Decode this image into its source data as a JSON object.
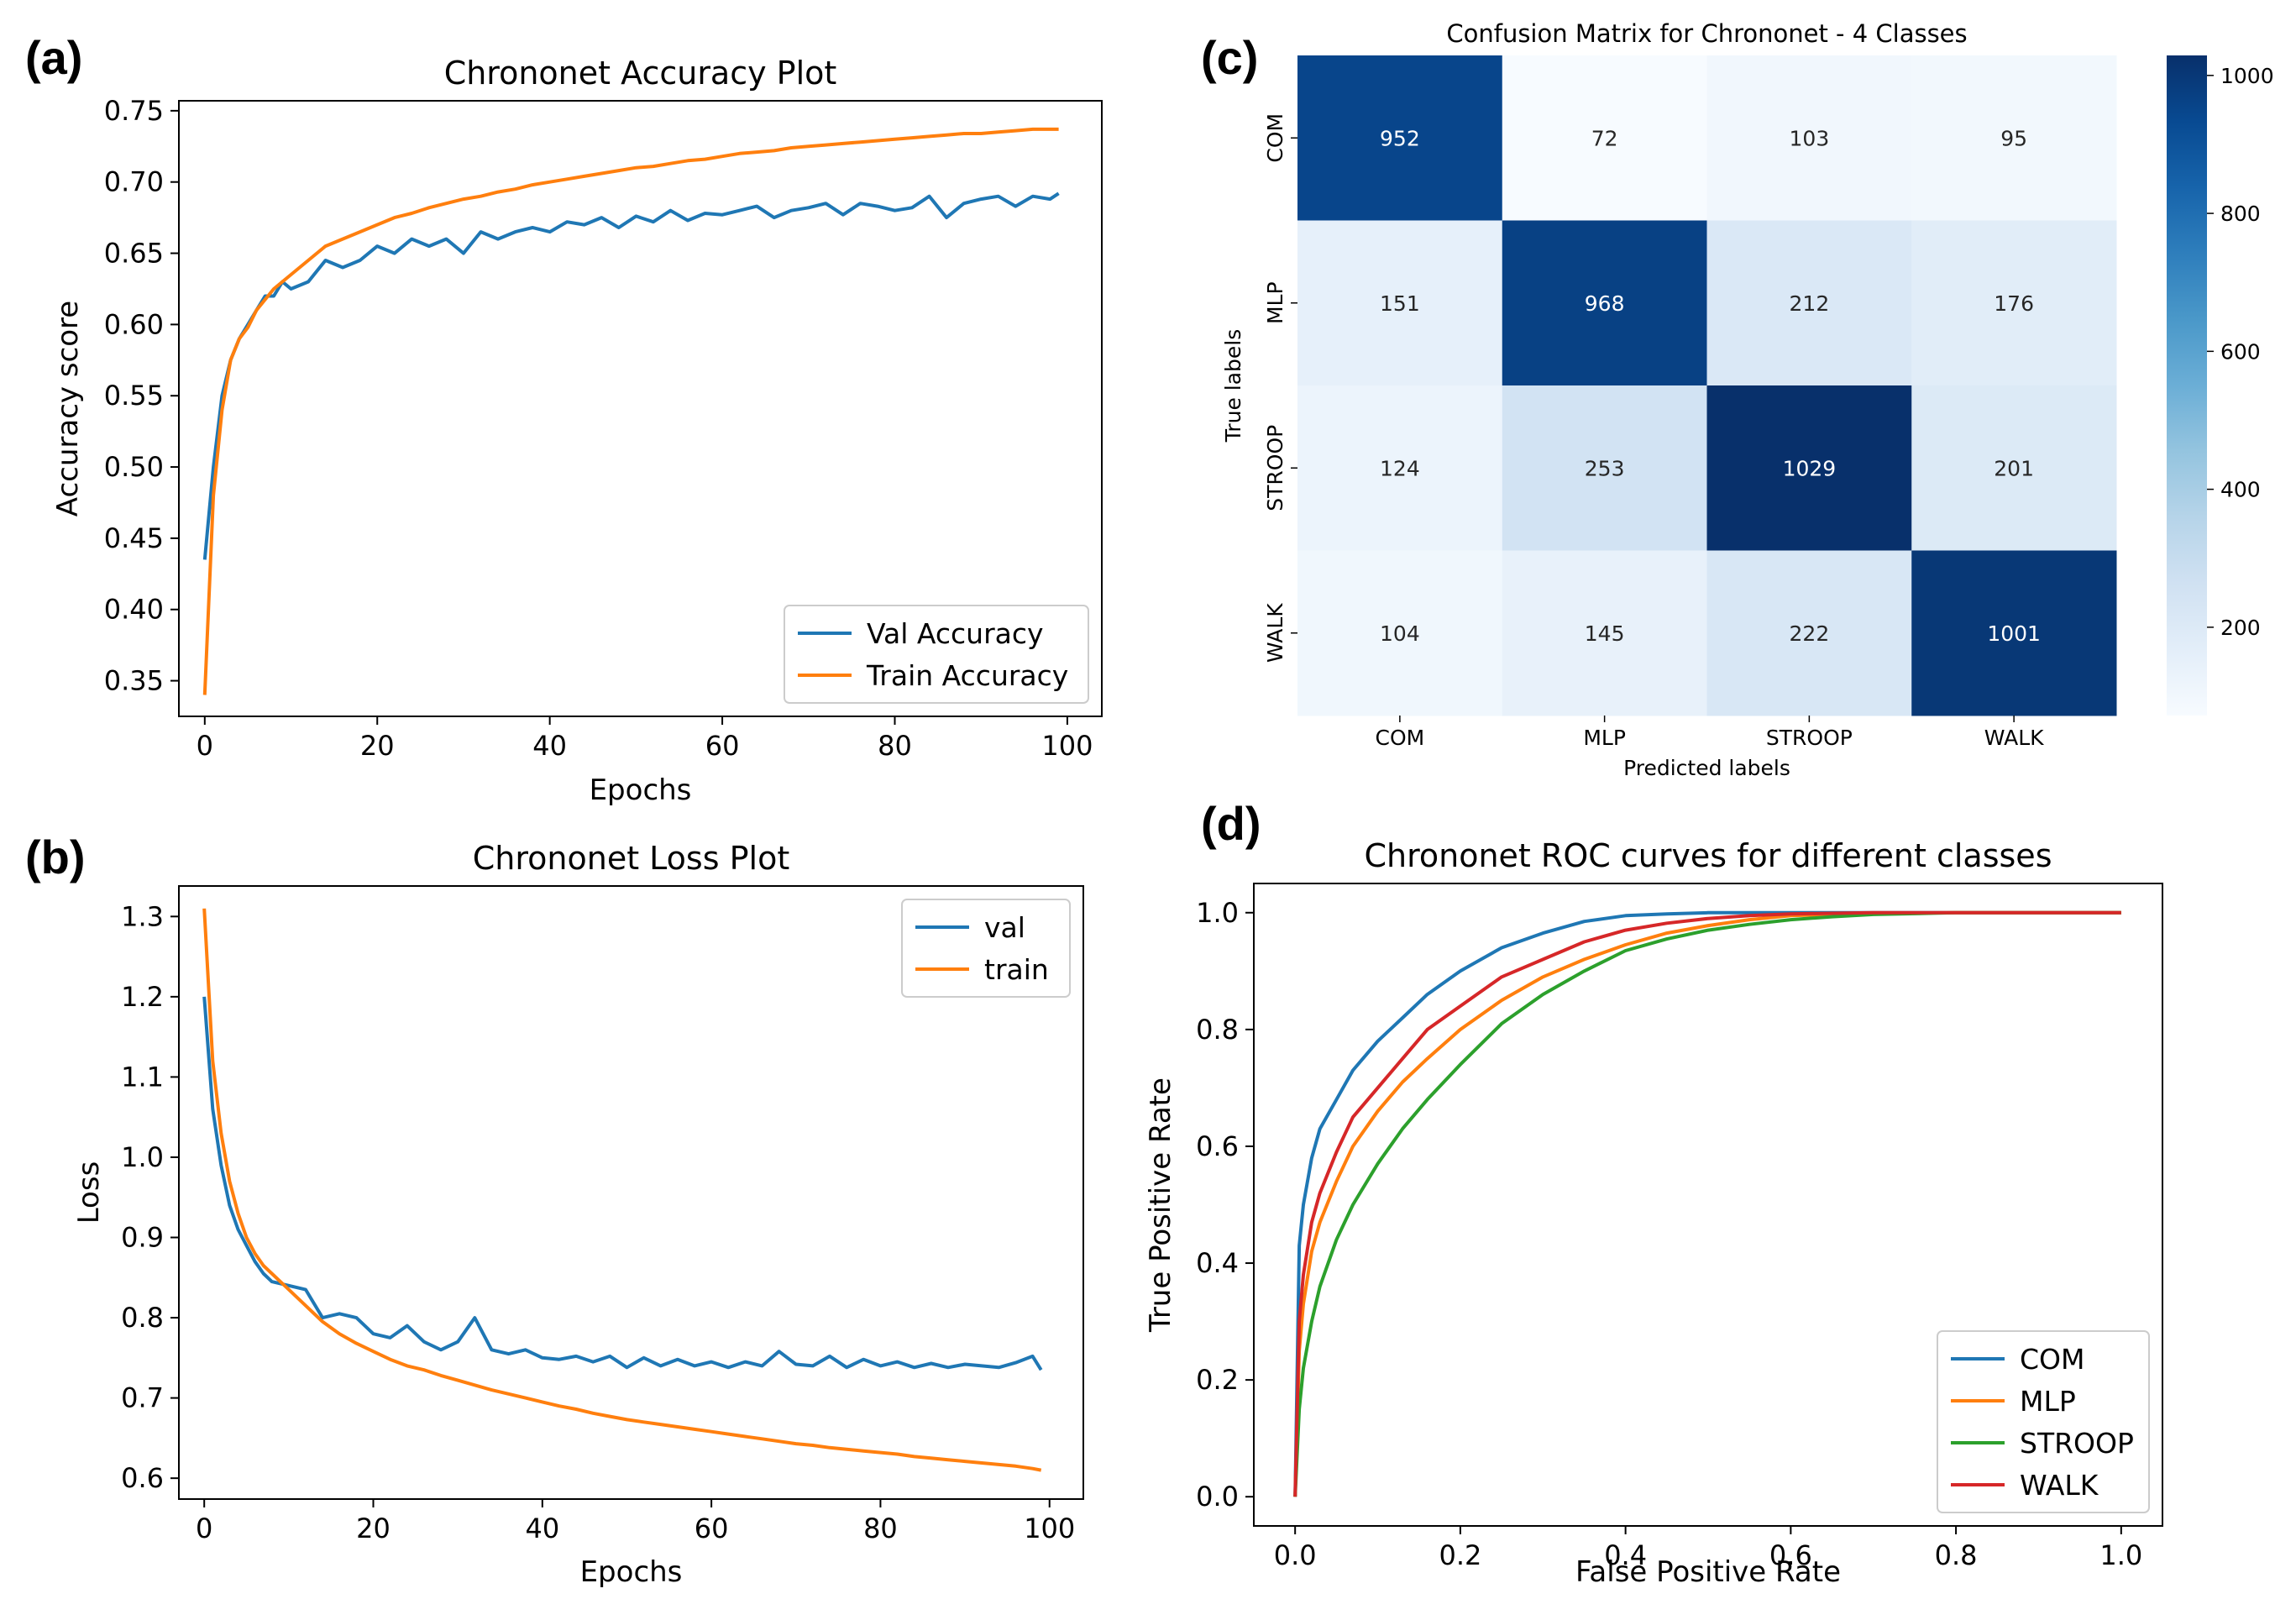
{
  "panels": {
    "a": "(a)",
    "b": "(b)",
    "c": "(c)",
    "d": "(d)"
  },
  "colors": {
    "blue": "#1f77b4",
    "orange": "#ff7f0e",
    "green": "#2ca02c",
    "red": "#d62728"
  },
  "chart_data": [
    {
      "id": "accuracy",
      "type": "line",
      "title": "Chrononet Accuracy Plot",
      "xlabel": "Epochs",
      "ylabel": "Accuracy score",
      "xlim": [
        -3,
        104
      ],
      "ylim": [
        0.325,
        0.757
      ],
      "xticks": [
        0,
        20,
        40,
        60,
        80,
        100
      ],
      "xtick_labels": [
        "0",
        "20",
        "40",
        "60",
        "80",
        "100"
      ],
      "yticks": [
        0.35,
        0.4,
        0.45,
        0.5,
        0.55,
        0.6,
        0.65,
        0.7,
        0.75
      ],
      "ytick_labels": [
        "0.35",
        "0.40",
        "0.45",
        "0.50",
        "0.55",
        "0.60",
        "0.65",
        "0.70",
        "0.75"
      ],
      "legend_position": "lower-right",
      "series": [
        {
          "name": "Val Accuracy",
          "color": "blue",
          "x": [
            0,
            1,
            2,
            3,
            4,
            5,
            6,
            7,
            8,
            9,
            10,
            12,
            14,
            16,
            18,
            20,
            22,
            24,
            26,
            28,
            30,
            32,
            34,
            36,
            38,
            40,
            42,
            44,
            46,
            48,
            50,
            52,
            54,
            56,
            58,
            60,
            62,
            64,
            66,
            68,
            70,
            72,
            74,
            76,
            78,
            80,
            82,
            84,
            86,
            88,
            90,
            92,
            94,
            96,
            98,
            99
          ],
          "y": [
            0.435,
            0.5,
            0.55,
            0.575,
            0.59,
            0.6,
            0.61,
            0.62,
            0.62,
            0.63,
            0.625,
            0.63,
            0.645,
            0.64,
            0.645,
            0.655,
            0.65,
            0.66,
            0.655,
            0.66,
            0.65,
            0.665,
            0.66,
            0.665,
            0.668,
            0.665,
            0.672,
            0.67,
            0.675,
            0.668,
            0.676,
            0.672,
            0.68,
            0.673,
            0.678,
            0.677,
            0.68,
            0.683,
            0.675,
            0.68,
            0.682,
            0.685,
            0.677,
            0.685,
            0.683,
            0.68,
            0.682,
            0.69,
            0.675,
            0.685,
            0.688,
            0.69,
            0.683,
            0.69,
            0.688,
            0.692
          ]
        },
        {
          "name": "Train Accuracy",
          "color": "orange",
          "x": [
            0,
            1,
            2,
            3,
            4,
            5,
            6,
            8,
            10,
            12,
            14,
            16,
            18,
            20,
            22,
            24,
            26,
            28,
            30,
            32,
            34,
            36,
            38,
            40,
            42,
            44,
            46,
            48,
            50,
            52,
            54,
            56,
            58,
            60,
            62,
            64,
            66,
            68,
            70,
            72,
            74,
            76,
            78,
            80,
            82,
            84,
            86,
            88,
            90,
            92,
            94,
            96,
            98,
            99
          ],
          "y": [
            0.34,
            0.48,
            0.54,
            0.575,
            0.59,
            0.598,
            0.61,
            0.625,
            0.635,
            0.645,
            0.655,
            0.66,
            0.665,
            0.67,
            0.675,
            0.678,
            0.682,
            0.685,
            0.688,
            0.69,
            0.693,
            0.695,
            0.698,
            0.7,
            0.702,
            0.704,
            0.706,
            0.708,
            0.71,
            0.711,
            0.713,
            0.715,
            0.716,
            0.718,
            0.72,
            0.721,
            0.722,
            0.724,
            0.725,
            0.726,
            0.727,
            0.728,
            0.729,
            0.73,
            0.731,
            0.732,
            0.733,
            0.734,
            0.734,
            0.735,
            0.736,
            0.737,
            0.737,
            0.737
          ]
        }
      ]
    },
    {
      "id": "loss",
      "type": "line",
      "title": "Chrononet Loss Plot",
      "xlabel": "Epochs",
      "ylabel": "Loss",
      "xlim": [
        -3,
        104
      ],
      "ylim": [
        0.574,
        1.338
      ],
      "xticks": [
        0,
        20,
        40,
        60,
        80,
        100
      ],
      "xtick_labels": [
        "0",
        "20",
        "40",
        "60",
        "80",
        "100"
      ],
      "yticks": [
        0.6,
        0.7,
        0.8,
        0.9,
        1.0,
        1.1,
        1.2,
        1.3
      ],
      "ytick_labels": [
        "0.6",
        "0.7",
        "0.8",
        "0.9",
        "1.0",
        "1.1",
        "1.2",
        "1.3"
      ],
      "legend_position": "upper-right",
      "series": [
        {
          "name": "val",
          "color": "blue",
          "x": [
            0,
            1,
            2,
            3,
            4,
            5,
            6,
            7,
            8,
            10,
            12,
            14,
            16,
            18,
            20,
            22,
            24,
            26,
            28,
            30,
            32,
            34,
            36,
            38,
            40,
            42,
            44,
            46,
            48,
            50,
            52,
            54,
            56,
            58,
            60,
            62,
            64,
            66,
            68,
            70,
            72,
            74,
            76,
            78,
            80,
            82,
            84,
            86,
            88,
            90,
            92,
            94,
            96,
            98,
            99
          ],
          "y": [
            1.2,
            1.06,
            0.99,
            0.94,
            0.91,
            0.89,
            0.87,
            0.855,
            0.845,
            0.84,
            0.835,
            0.8,
            0.805,
            0.8,
            0.78,
            0.775,
            0.79,
            0.77,
            0.76,
            0.77,
            0.8,
            0.76,
            0.755,
            0.76,
            0.75,
            0.748,
            0.752,
            0.745,
            0.752,
            0.738,
            0.75,
            0.74,
            0.748,
            0.74,
            0.745,
            0.738,
            0.745,
            0.74,
            0.758,
            0.742,
            0.74,
            0.752,
            0.738,
            0.748,
            0.74,
            0.745,
            0.738,
            0.743,
            0.738,
            0.742,
            0.74,
            0.738,
            0.744,
            0.752,
            0.735
          ]
        },
        {
          "name": "train",
          "color": "orange",
          "x": [
            0,
            1,
            2,
            3,
            4,
            5,
            6,
            7,
            8,
            10,
            12,
            14,
            16,
            18,
            20,
            22,
            24,
            26,
            28,
            30,
            32,
            34,
            36,
            38,
            40,
            42,
            44,
            46,
            48,
            50,
            52,
            54,
            56,
            58,
            60,
            62,
            64,
            66,
            68,
            70,
            72,
            74,
            76,
            78,
            80,
            82,
            84,
            86,
            88,
            90,
            92,
            94,
            96,
            98,
            99
          ],
          "y": [
            1.31,
            1.12,
            1.03,
            0.97,
            0.93,
            0.9,
            0.88,
            0.865,
            0.855,
            0.835,
            0.815,
            0.795,
            0.78,
            0.768,
            0.758,
            0.748,
            0.74,
            0.735,
            0.728,
            0.722,
            0.716,
            0.71,
            0.705,
            0.7,
            0.695,
            0.69,
            0.686,
            0.681,
            0.677,
            0.673,
            0.67,
            0.667,
            0.664,
            0.661,
            0.658,
            0.655,
            0.652,
            0.649,
            0.646,
            0.643,
            0.641,
            0.638,
            0.636,
            0.634,
            0.632,
            0.63,
            0.627,
            0.625,
            0.623,
            0.621,
            0.619,
            0.617,
            0.615,
            0.612,
            0.61
          ]
        }
      ]
    },
    {
      "id": "confusion",
      "type": "heatmap",
      "title": "Confusion Matrix for Chrononet - 4 Classes",
      "xlabel": "Predicted labels",
      "ylabel": "True labels",
      "row_labels": [
        "COM",
        "MLP",
        "STROOP",
        "WALK"
      ],
      "col_labels": [
        "COM",
        "MLP",
        "STROOP",
        "WALK"
      ],
      "matrix": [
        [
          952,
          72,
          103,
          95
        ],
        [
          151,
          968,
          212,
          176
        ],
        [
          124,
          253,
          1029,
          201
        ],
        [
          104,
          145,
          222,
          1001
        ]
      ],
      "vmin": 72,
      "vmax": 1029,
      "colorbar_ticks": [
        200,
        400,
        600,
        800,
        1000
      ],
      "colorbar_tick_labels": [
        "200",
        "400",
        "600",
        "800",
        "1000"
      ]
    },
    {
      "id": "roc",
      "type": "line",
      "title": "Chrononet ROC curves for different classes",
      "xlabel": "False Positive Rate",
      "ylabel": "True Positive Rate",
      "xlim": [
        -0.05,
        1.05
      ],
      "ylim": [
        -0.05,
        1.05
      ],
      "xticks": [
        0,
        0.2,
        0.4,
        0.6,
        0.8,
        1.0
      ],
      "xtick_labels": [
        "0.0",
        "0.2",
        "0.4",
        "0.6",
        "0.8",
        "1.0"
      ],
      "yticks": [
        0,
        0.2,
        0.4,
        0.6,
        0.8,
        1.0
      ],
      "ytick_labels": [
        "0.0",
        "0.2",
        "0.4",
        "0.6",
        "0.8",
        "1.0"
      ],
      "legend_position": "lower-right",
      "series": [
        {
          "name": "COM",
          "color": "blue",
          "x": [
            0,
            0.005,
            0.01,
            0.02,
            0.03,
            0.05,
            0.07,
            0.1,
            0.13,
            0.16,
            0.2,
            0.25,
            0.3,
            0.35,
            0.4,
            0.45,
            0.5,
            0.6,
            0.8,
            1.0
          ],
          "y": [
            0,
            0.43,
            0.5,
            0.58,
            0.63,
            0.68,
            0.73,
            0.78,
            0.82,
            0.86,
            0.9,
            0.94,
            0.965,
            0.985,
            0.995,
            0.998,
            1.0,
            1.0,
            1.0,
            1.0
          ]
        },
        {
          "name": "MLP",
          "color": "orange",
          "x": [
            0,
            0.005,
            0.01,
            0.02,
            0.03,
            0.05,
            0.07,
            0.1,
            0.13,
            0.16,
            0.2,
            0.25,
            0.3,
            0.35,
            0.4,
            0.45,
            0.5,
            0.55,
            0.6,
            0.7,
            0.8,
            1.0
          ],
          "y": [
            0,
            0.25,
            0.33,
            0.42,
            0.47,
            0.54,
            0.6,
            0.66,
            0.71,
            0.75,
            0.8,
            0.85,
            0.89,
            0.92,
            0.945,
            0.965,
            0.978,
            0.988,
            0.995,
            0.999,
            1.0,
            1.0
          ]
        },
        {
          "name": "STROOP",
          "color": "green",
          "x": [
            0,
            0.005,
            0.01,
            0.02,
            0.03,
            0.05,
            0.07,
            0.1,
            0.13,
            0.16,
            0.2,
            0.25,
            0.3,
            0.35,
            0.4,
            0.45,
            0.5,
            0.55,
            0.6,
            0.65,
            0.7,
            0.8,
            1.0
          ],
          "y": [
            0,
            0.15,
            0.22,
            0.3,
            0.36,
            0.44,
            0.5,
            0.57,
            0.63,
            0.68,
            0.74,
            0.81,
            0.86,
            0.9,
            0.935,
            0.955,
            0.97,
            0.98,
            0.988,
            0.993,
            0.997,
            1.0,
            1.0
          ]
        },
        {
          "name": "WALK",
          "color": "red",
          "x": [
            0,
            0.005,
            0.01,
            0.02,
            0.03,
            0.05,
            0.07,
            0.1,
            0.13,
            0.16,
            0.2,
            0.25,
            0.3,
            0.35,
            0.4,
            0.45,
            0.5,
            0.55,
            0.6,
            0.7,
            1.0
          ],
          "y": [
            0,
            0.3,
            0.38,
            0.47,
            0.52,
            0.59,
            0.65,
            0.7,
            0.75,
            0.8,
            0.84,
            0.89,
            0.92,
            0.95,
            0.97,
            0.982,
            0.99,
            0.995,
            0.998,
            1.0,
            1.0
          ]
        }
      ]
    }
  ]
}
